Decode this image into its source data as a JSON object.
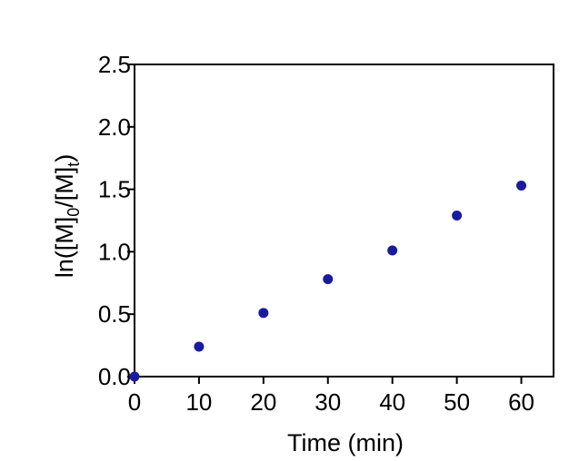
{
  "chart_data": {
    "type": "scatter",
    "title": "",
    "xlabel": "Time (min)",
    "ylabel": "ln([M]0/[M]t)",
    "ylabel_parts": {
      "prefix": "ln([M]",
      "sub1": "0",
      "middle": "/[M]",
      "sub2": "t",
      "suffix": ")"
    },
    "xlim": [
      0,
      65
    ],
    "ylim": [
      0,
      2.5
    ],
    "x_ticks": [
      0,
      10,
      20,
      30,
      40,
      50,
      60
    ],
    "x_tick_labels": [
      "0",
      "10",
      "20",
      "30",
      "40",
      "50",
      "60"
    ],
    "y_ticks": [
      0,
      0.5,
      1,
      1.5,
      2,
      2.5
    ],
    "y_tick_labels": [
      "0.0",
      "0.5",
      "1.0",
      "1.5",
      "2.0",
      "2.5"
    ],
    "grid": false,
    "legend": "none",
    "series": [
      {
        "name": "",
        "color": "#1a1aa0",
        "x": [
          0,
          10,
          20,
          30,
          40,
          50,
          60
        ],
        "y": [
          0.0,
          0.24,
          0.51,
          0.78,
          1.01,
          1.29,
          1.53
        ]
      }
    ]
  }
}
